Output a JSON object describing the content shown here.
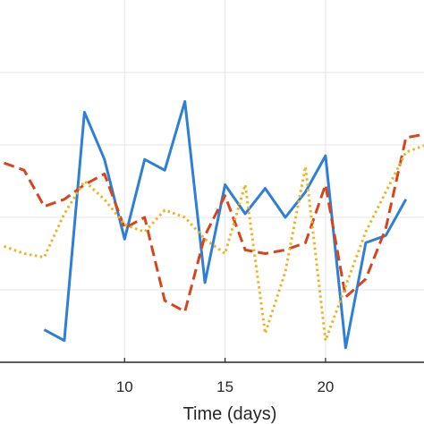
{
  "chart_data": {
    "type": "line",
    "xlabel": "Time (days)",
    "ylabel": "",
    "title": "",
    "xlim": [
      3.8,
      24.9
    ],
    "ylim": [
      0,
      10
    ],
    "grid": true,
    "x_ticks": [
      10,
      15,
      20
    ],
    "series": [
      {
        "color": "#2d7fd8",
        "style": "solid",
        "x": [
          6,
          7,
          8,
          9,
          10,
          11,
          12,
          13,
          14,
          15,
          16,
          17,
          18,
          19,
          20,
          21,
          22,
          23,
          24
        ],
        "y": [
          0.9,
          0.6,
          6.9,
          5.6,
          3.4,
          5.6,
          5.3,
          7.2,
          2.2,
          4.9,
          4.1,
          4.8,
          4.0,
          4.7,
          5.7,
          0.4,
          3.3,
          3.5,
          4.5
        ]
      },
      {
        "color": "#d6451c",
        "style": "dashed",
        "x": [
          4,
          5,
          6,
          7,
          8,
          9,
          10,
          11,
          12,
          13,
          14,
          15,
          16,
          17,
          18,
          19,
          20,
          21,
          22,
          23,
          24,
          25
        ],
        "y": [
          5.5,
          5.3,
          4.3,
          4.5,
          4.9,
          5.2,
          3.7,
          4.0,
          1.7,
          1.4,
          3.5,
          4.6,
          3.1,
          3.0,
          3.1,
          3.3,
          4.9,
          1.8,
          2.3,
          3.7,
          6.2,
          6.3
        ]
      },
      {
        "color": "#eab521",
        "style": "dotted",
        "x": [
          4,
          5,
          6,
          7,
          8,
          9,
          10,
          11,
          12,
          13,
          14,
          15,
          16,
          17,
          18,
          19,
          20,
          21,
          22,
          23,
          24,
          25
        ],
        "y": [
          3.2,
          3.0,
          2.9,
          4.1,
          5.0,
          4.5,
          3.8,
          3.6,
          4.2,
          4.0,
          3.4,
          3.0,
          4.9,
          0.8,
          2.5,
          5.4,
          0.6,
          2.1,
          3.6,
          4.7,
          5.8,
          6.0
        ]
      }
    ]
  }
}
